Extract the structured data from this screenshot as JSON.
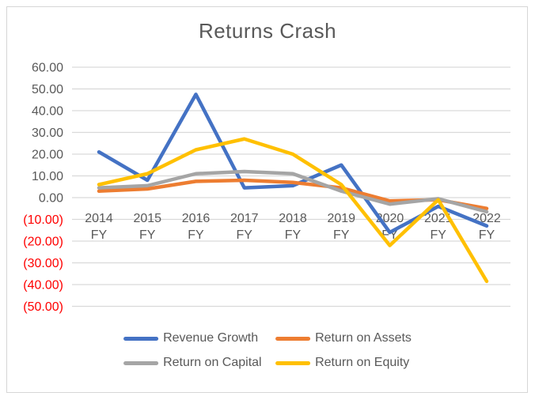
{
  "chart_data": {
    "type": "line",
    "title": "Returns Crash",
    "categories": [
      "2014 FY",
      "2015 FY",
      "2016 FY",
      "2017 FY",
      "2018 FY",
      "2019 FY",
      "2020 FY",
      "2021 FY",
      "2022 FY"
    ],
    "series": [
      {
        "name": "Revenue Growth",
        "color": "#4472C4",
        "values": [
          21,
          8,
          47.5,
          4.5,
          5.5,
          15,
          -16,
          -4,
          -13
        ]
      },
      {
        "name": "Return on Assets",
        "color": "#ED7D31",
        "values": [
          3,
          4,
          7.5,
          8,
          7,
          4.5,
          -1.5,
          -1,
          -5
        ]
      },
      {
        "name": "Return on Capital",
        "color": "#A5A5A5",
        "values": [
          4.5,
          5.5,
          11,
          12,
          11,
          3,
          -3,
          -0.5,
          -6.5
        ]
      },
      {
        "name": "Return on Equity",
        "color": "#FFC000",
        "values": [
          6,
          11,
          22,
          27,
          20,
          6,
          -22,
          -1,
          -38.5
        ]
      }
    ],
    "ylim": [
      -50,
      60
    ],
    "ytick_step": 10,
    "ytick_labels": [
      "60.00",
      "50.00",
      "40.00",
      "30.00",
      "20.00",
      "10.00",
      "0.00",
      "(10.00)",
      "(20.00)",
      "(30.00)",
      "(40.00)",
      "(50.00)"
    ],
    "grid": true,
    "legend_position": "bottom",
    "axis_label_color": "#595959",
    "negative_label_color": "#FF0000",
    "gridline_color": "#D9D9D9",
    "title_color": "#595959"
  }
}
